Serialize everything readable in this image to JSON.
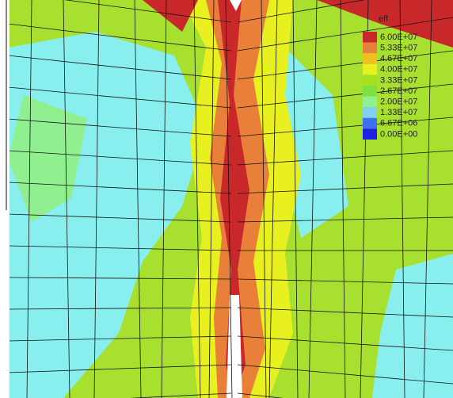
{
  "legend": {
    "title": "eff",
    "levels": [
      {
        "label": "6.00E+07",
        "color": "#c8282a"
      },
      {
        "label": "5.33E+07",
        "color": "#e8803a"
      },
      {
        "label": "4.67E+07",
        "color": "#f0c020"
      },
      {
        "label": "4.00E+07",
        "color": "#e8f020"
      },
      {
        "label": "3.33E+07",
        "color": "#a8e020"
      },
      {
        "label": "2.67E+07",
        "color": "#80e040"
      },
      {
        "label": "2.00E+07",
        "color": "#90f090"
      },
      {
        "label": "1.33E+07",
        "color": "#80d0f0"
      },
      {
        "label": "6.67E+06",
        "color": "#4070f0"
      },
      {
        "label": "0.00E+00",
        "color": "#2020e0"
      }
    ]
  }
}
